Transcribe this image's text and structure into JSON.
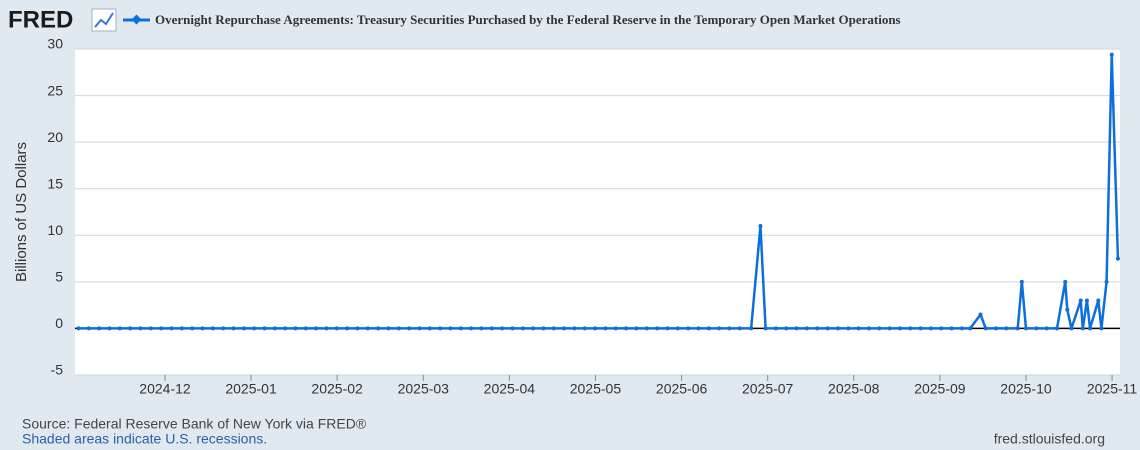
{
  "header": {
    "logo": "FRED"
  },
  "chart_data": {
    "type": "line",
    "y_label": "Billions of US Dollars",
    "x": [
      2024.833,
      2024.843,
      2024.853,
      2024.863,
      2024.873,
      2024.883,
      2024.893,
      2024.903,
      2024.913,
      2024.923,
      2024.933,
      2024.943,
      2024.953,
      2024.963,
      2024.973,
      2024.983,
      2024.993,
      2025.003,
      2025.013,
      2025.023,
      2025.033,
      2025.043,
      2025.053,
      2025.063,
      2025.073,
      2025.083,
      2025.093,
      2025.103,
      2025.113,
      2025.123,
      2025.133,
      2025.143,
      2025.153,
      2025.163,
      2025.173,
      2025.183,
      2025.193,
      2025.203,
      2025.213,
      2025.223,
      2025.233,
      2025.243,
      2025.253,
      2025.263,
      2025.273,
      2025.283,
      2025.293,
      2025.303,
      2025.313,
      2025.323,
      2025.333,
      2025.343,
      2025.353,
      2025.363,
      2025.373,
      2025.383,
      2025.393,
      2025.403,
      2025.413,
      2025.423,
      2025.433,
      2025.443,
      2025.453,
      2025.463,
      2025.473,
      2025.484,
      2025.493,
      2025.498,
      2025.508,
      2025.518,
      2025.528,
      2025.538,
      2025.548,
      2025.558,
      2025.568,
      2025.578,
      2025.588,
      2025.598,
      2025.608,
      2025.618,
      2025.628,
      2025.638,
      2025.648,
      2025.658,
      2025.668,
      2025.678,
      2025.688,
      2025.696,
      2025.706,
      2025.711,
      2025.721,
      2025.731,
      2025.742,
      2025.746,
      2025.75,
      2025.76,
      2025.77,
      2025.78,
      2025.788,
      2025.79,
      2025.794,
      2025.803,
      2025.805,
      2025.809,
      2025.812,
      2025.82,
      2025.823,
      2025.828,
      2025.833,
      2025.839
    ],
    "series": [
      {
        "name": "Overnight Repurchase Agreements: Treasury Securities Purchased by the Federal Reserve in the Temporary Open Market Operations",
        "color": "#0c6fdd",
        "values": [
          0,
          0,
          0,
          0,
          0,
          0,
          0,
          0,
          0,
          0,
          0,
          0,
          0,
          0,
          0,
          0,
          0,
          0,
          0,
          0,
          0,
          0,
          0,
          0,
          0,
          0,
          0,
          0,
          0,
          0,
          0,
          0,
          0,
          0,
          0,
          0,
          0,
          0,
          0,
          0,
          0,
          0,
          0,
          0,
          0,
          0,
          0,
          0,
          0,
          0,
          0,
          0,
          0,
          0,
          0,
          0,
          0,
          0,
          0,
          0,
          0,
          0,
          0,
          0,
          0,
          0,
          11,
          0,
          0,
          0,
          0,
          0,
          0,
          0,
          0,
          0,
          0,
          0,
          0,
          0,
          0,
          0,
          0,
          0,
          0,
          0,
          0,
          0,
          1.5,
          0,
          0,
          0,
          0,
          5,
          0,
          0,
          0,
          0,
          5,
          2,
          0,
          3,
          0,
          3,
          0,
          3,
          0,
          5,
          29.4,
          7.5
        ]
      }
    ],
    "xlim": [
      2024.8296,
      2025.841
    ],
    "xticks": [
      {
        "value": 2024.9167,
        "label": "2024-12"
      },
      {
        "value": 2025.0,
        "label": "2025-01"
      },
      {
        "value": 2025.0833,
        "label": "2025-02"
      },
      {
        "value": 2025.1667,
        "label": "2025-03"
      },
      {
        "value": 2025.25,
        "label": "2025-04"
      },
      {
        "value": 2025.3333,
        "label": "2025-05"
      },
      {
        "value": 2025.4167,
        "label": "2025-06"
      },
      {
        "value": 2025.5,
        "label": "2025-07"
      },
      {
        "value": 2025.5833,
        "label": "2025-08"
      },
      {
        "value": 2025.6667,
        "label": "2025-09"
      },
      {
        "value": 2025.75,
        "label": "2025-10"
      },
      {
        "value": 2025.8333,
        "label": "2025-11"
      }
    ],
    "ylim": [
      -5,
      30
    ],
    "yticks": [
      -5,
      0,
      5,
      10,
      15,
      20,
      25,
      30
    ],
    "grid": true
  },
  "footer": {
    "source": "Source: Federal Reserve Bank of New York via FRED®",
    "note": "Shaded areas indicate U.S. recessions.",
    "site": "fred.stlouisfed.org"
  }
}
